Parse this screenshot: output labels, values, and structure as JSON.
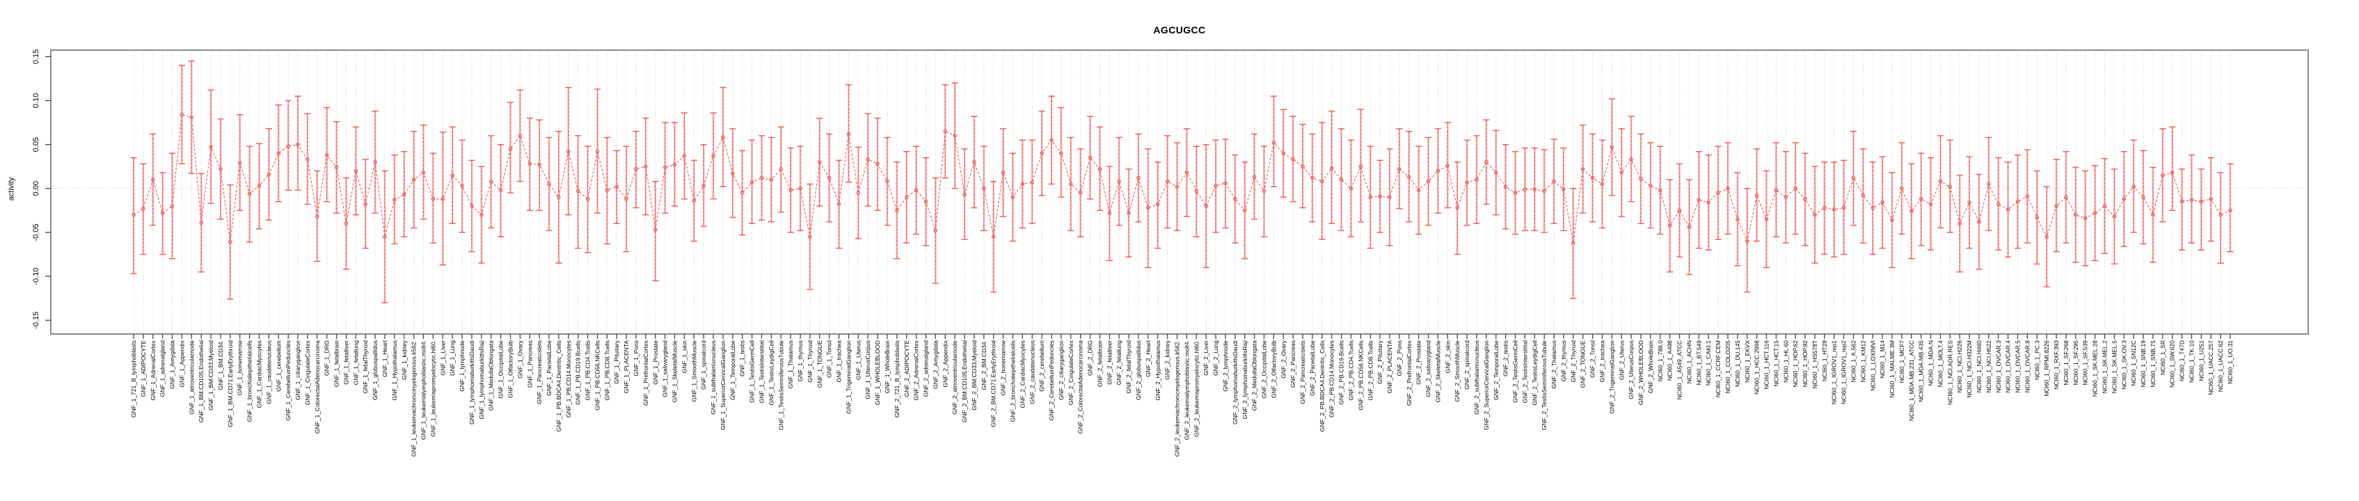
{
  "chart_data": {
    "type": "line",
    "subtype": "error-bar-series",
    "title": "AGCUGCC",
    "ylabel": "activity",
    "xlabel": "",
    "ylim": [
      -0.158,
      0.158
    ],
    "ytick_labels": [
      "-0.15",
      "-0.10",
      "-0.05",
      "0.00",
      "0.05",
      "0.10",
      "0.15"
    ],
    "grid": "vertical-dotted-per-category-plus-zero-line",
    "legend": "none",
    "colors": {
      "series_red": "#ee5a5a",
      "errorbar_pink": "#f7abab",
      "grid_gray": "#c8c8c8",
      "frame_gray": "#8a8a8a",
      "tick_dark": "#444444"
    },
    "groups": [
      {
        "prefix": "GNF_1_",
        "items": [
          "721_B_lymphoblasts",
          "ADIPOCYTE",
          "AdrenalCortex",
          "adrenalgland",
          "Amygdala",
          "Appendix",
          "atrioventricularnode",
          "BM.CD105.Endothelial",
          "BM.CD33.Myeloid",
          "BM.CD34.",
          "BM.CD71.EarlyErythroid",
          "bonemarrow",
          "bronchialepithelialcells",
          "CardiacMyocytes",
          "caudatenucleus",
          "cerebellum",
          "CerebellumPeduncles",
          "ciliaryganglion",
          "CingulateCortex",
          "ColorectalAdenocarcinoma",
          "DRG",
          "fetalbrain",
          "fetalliver",
          "fetallung",
          "fetalThyroid",
          "globuspallidus",
          "Heart",
          "Hypothalamus",
          "kidney",
          "leukemiachronicmyelogenous.k562.",
          "leukemialymphoblastic.molt4.",
          "leukemiapromyelocytic.hl60.",
          "Liver",
          "Lung",
          "lymphnode",
          "lymphomaburkittsDaudi",
          "lymphomaburkittsRaji",
          "MedullaOblongata",
          "OccipitalLobe",
          "OlfactoryBulb",
          "Ovary",
          "Pancreas",
          "Pancreaticislets",
          "ParietalLobe",
          "PB.BDCA4.Dentritic_Cells",
          "PB.CD14.Monocytes",
          "PB.CD19.Bcells",
          "PB.CD4.Tcells",
          "PB.CD56.NKCells",
          "PB.CD8.Tcells",
          "Pituitary",
          "PLACENTA",
          "Pons",
          "PrefrontalCortex",
          "Prostate",
          "salivarygland",
          "SkeletalMuscle",
          "skin",
          "SmoothMuscle",
          "spinalcord",
          "subthalamicnucleus",
          "SuperiorCervicalGanglion",
          "TemporalLobe",
          "testis",
          "TestisGermCell",
          "TestisInterstitial",
          "TestisLeydigCell",
          "TestisSeminiferousTubule",
          "Thalamus",
          "thymus",
          "Thyroid",
          "TONGUE",
          "Tonsil",
          "trachea",
          "TrigeminalGanglion",
          "Uterus",
          "UterusCorpus",
          "WHOLEBLOOD",
          "WholeBrain"
        ],
        "v": [
          -0.03,
          -0.023,
          0.01,
          -0.028,
          -0.02,
          0.084,
          0.081,
          -0.039,
          0.047,
          0.022,
          -0.061,
          0.029,
          -0.006,
          0.003,
          0.016,
          0.04,
          0.048,
          0.05,
          0.033,
          -0.032,
          0.038,
          0.024,
          -0.04,
          0.02,
          -0.018,
          0.03,
          -0.055,
          -0.013,
          -0.007,
          0.01,
          0.018,
          -0.012,
          -0.012,
          0.015,
          0.003,
          -0.02,
          -0.03,
          0.008,
          -0.002,
          0.045,
          0.06,
          0.028,
          0.027,
          0.005,
          -0.01,
          0.042,
          -0.003,
          -0.012,
          0.042,
          -0.002,
          0.002,
          -0.012,
          0.022,
          0.025,
          -0.047,
          0.024,
          0.027,
          0.037,
          -0.014,
          0.003,
          0.037,
          0.058,
          0.017,
          -0.005,
          0.007,
          0.012,
          0.01,
          0.022,
          -0.002,
          0.0,
          -0.055,
          0.03,
          0.012,
          -0.018,
          0.062,
          -0.005,
          0.033,
          0.028,
          0.008
        ],
        "lo": [
          -0.097,
          -0.075,
          -0.042,
          -0.075,
          -0.08,
          0.028,
          0.017,
          -0.095,
          -0.017,
          -0.035,
          -0.126,
          -0.025,
          -0.061,
          -0.046,
          -0.036,
          -0.015,
          -0.002,
          -0.002,
          -0.018,
          -0.083,
          -0.015,
          -0.028,
          -0.092,
          -0.03,
          -0.068,
          -0.028,
          -0.13,
          -0.063,
          -0.055,
          -0.045,
          -0.035,
          -0.062,
          -0.087,
          -0.04,
          -0.05,
          -0.072,
          -0.085,
          -0.045,
          -0.055,
          -0.005,
          0.008,
          -0.025,
          -0.025,
          -0.048,
          -0.085,
          -0.03,
          -0.068,
          -0.073,
          -0.028,
          -0.063,
          -0.04,
          -0.072,
          -0.022,
          -0.03,
          -0.105,
          -0.028,
          -0.02,
          -0.012,
          -0.06,
          -0.043,
          -0.012,
          0.002,
          -0.033,
          -0.053,
          -0.04,
          -0.036,
          -0.038,
          -0.027,
          -0.05,
          -0.048,
          -0.115,
          -0.02,
          -0.038,
          -0.068,
          0.007,
          -0.057,
          -0.02,
          -0.025,
          -0.042
        ],
        "hi": [
          0.035,
          0.028,
          0.062,
          0.018,
          0.04,
          0.14,
          0.145,
          0.017,
          0.112,
          0.079,
          0.004,
          0.084,
          0.048,
          0.051,
          0.068,
          0.095,
          0.1,
          0.105,
          0.085,
          0.02,
          0.092,
          0.076,
          0.012,
          0.07,
          0.033,
          0.088,
          0.02,
          0.038,
          0.042,
          0.065,
          0.072,
          0.04,
          0.064,
          0.07,
          0.055,
          0.032,
          0.025,
          0.06,
          0.05,
          0.098,
          0.112,
          0.08,
          0.078,
          0.058,
          0.065,
          0.115,
          0.06,
          0.048,
          0.113,
          0.058,
          0.043,
          0.048,
          0.065,
          0.08,
          0.008,
          0.075,
          0.075,
          0.086,
          0.032,
          0.05,
          0.086,
          0.115,
          0.068,
          0.043,
          0.055,
          0.06,
          0.058,
          0.07,
          0.046,
          0.048,
          0.005,
          0.08,
          0.062,
          0.032,
          0.118,
          0.047,
          0.085,
          0.08,
          0.058
        ]
      },
      {
        "prefix": "GNF_2_",
        "items": [
          "721_B_lymphoblasts",
          "ADIPOCYTE",
          "AdrenalCortex",
          "adrenalgland",
          "Amygdala",
          "Appendix",
          "atrioventricularnode",
          "BM.CD105.Endothelial",
          "BM.CD33.Myeloid",
          "BM.CD34.",
          "BM.CD71.EarlyErythroid",
          "bonemarrow",
          "bronchialepithelialcells",
          "CardiacMyocytes",
          "caudatenucleus",
          "cerebellum",
          "CerebellumPeduncles",
          "ciliaryganglion",
          "CingulateCortex",
          "ColorectalAdenocarcinoma",
          "DRG",
          "fetalbrain",
          "fetalliver",
          "fetallung",
          "fetalThyroid",
          "globuspallidus",
          "Heart",
          "Hypothalamus",
          "kidney",
          "leukemiachronicmyelogenous.k562.",
          "leukemialymphoblastic.molt4.",
          "leukemiapromyelocytic.hl60.",
          "Liver",
          "Lung",
          "lymphnode",
          "lymphomaburkittsDaudi",
          "lymphomaburkittsRaji",
          "MedullaOblongata",
          "OccipitalLobe",
          "OlfactoryBulb",
          "Ovary",
          "Pancreas",
          "Pancreaticislets",
          "ParietalLobe",
          "PB.BDCA4.Dentritic_Cells",
          "PB.CD14.Monocytes",
          "PB.CD19.Bcells",
          "PB.CD4.Tcells",
          "PB.CD56.NKCells",
          "PB.CD8.Tcells",
          "Pituitary",
          "PLACENTA",
          "Pons",
          "PrefrontalCortex",
          "Prostate",
          "salivarygland",
          "SkeletalMuscle",
          "skin",
          "SmoothMuscle",
          "spinalcord",
          "subthalamicnucleus",
          "SuperiorCervicalGanglion",
          "TemporalLobe",
          "testis",
          "TestisGermCell",
          "TestisInterstitial",
          "TestisLeydigCell",
          "TestisSeminiferousTubule",
          "Thalamus",
          "thymus",
          "Thyroid",
          "TONGUE",
          "Tonsil",
          "trachea",
          "TrigeminalGanglion",
          "Uterus",
          "UterusCorpus",
          "WHOLEBLOOD",
          "WholeBrain"
        ],
        "v": [
          -0.025,
          -0.01,
          -0.002,
          -0.015,
          -0.048,
          0.065,
          0.06,
          -0.007,
          0.03,
          0.0,
          -0.055,
          0.018,
          -0.01,
          0.005,
          0.007,
          0.04,
          0.055,
          0.04,
          0.005,
          -0.005,
          0.035,
          0.022,
          -0.028,
          0.008,
          -0.028,
          0.012,
          -0.022,
          -0.018,
          0.008,
          0.002,
          0.018,
          -0.003,
          -0.02,
          0.003,
          0.006,
          -0.012,
          -0.025,
          0.013,
          -0.003,
          0.052,
          0.04,
          0.033,
          0.025,
          0.012,
          0.008,
          0.023,
          0.01,
          0.0,
          0.025,
          -0.01,
          -0.009,
          -0.01,
          0.022,
          0.013,
          -0.002,
          0.008,
          0.02,
          0.026,
          -0.022,
          0.007,
          0.01,
          0.03,
          0.018,
          0.002,
          -0.005,
          -0.001,
          -0.001,
          -0.003,
          0.008,
          -0.001,
          -0.062,
          0.022,
          0.012,
          0.005,
          0.047,
          0.018,
          0.033,
          0.011,
          0.003
        ],
        "lo": [
          -0.08,
          -0.062,
          -0.052,
          -0.065,
          -0.108,
          0.012,
          0.0,
          -0.058,
          -0.022,
          -0.048,
          -0.118,
          -0.032,
          -0.06,
          -0.045,
          -0.04,
          -0.008,
          0.005,
          -0.01,
          -0.048,
          -0.055,
          -0.012,
          -0.025,
          -0.082,
          -0.042,
          -0.078,
          -0.038,
          -0.09,
          -0.068,
          -0.045,
          -0.048,
          -0.032,
          -0.055,
          -0.09,
          -0.05,
          -0.045,
          -0.062,
          -0.08,
          -0.035,
          -0.055,
          0.002,
          -0.01,
          -0.015,
          -0.022,
          -0.038,
          -0.058,
          -0.04,
          -0.048,
          -0.055,
          -0.038,
          -0.068,
          -0.05,
          -0.065,
          -0.023,
          -0.038,
          -0.052,
          -0.042,
          -0.028,
          -0.022,
          -0.075,
          -0.042,
          -0.04,
          -0.018,
          -0.03,
          -0.046,
          -0.052,
          -0.048,
          -0.048,
          -0.05,
          -0.04,
          -0.048,
          -0.125,
          -0.028,
          -0.038,
          -0.045,
          -0.008,
          -0.032,
          -0.015,
          -0.04,
          -0.045
        ],
        "hi": [
          0.03,
          0.042,
          0.048,
          0.035,
          0.012,
          0.118,
          0.12,
          0.045,
          0.082,
          0.048,
          0.008,
          0.068,
          0.04,
          0.055,
          0.055,
          0.088,
          0.105,
          0.092,
          0.058,
          0.045,
          0.082,
          0.07,
          0.025,
          0.058,
          0.022,
          0.062,
          0.045,
          0.03,
          0.06,
          0.052,
          0.068,
          0.048,
          0.05,
          0.055,
          0.056,
          0.038,
          0.03,
          0.062,
          0.048,
          0.105,
          0.09,
          0.082,
          0.073,
          0.062,
          0.075,
          0.088,
          0.068,
          0.055,
          0.09,
          0.048,
          0.032,
          0.045,
          0.068,
          0.065,
          0.048,
          0.058,
          0.068,
          0.075,
          0.03,
          0.055,
          0.06,
          0.078,
          0.066,
          0.05,
          0.042,
          0.046,
          0.046,
          0.044,
          0.056,
          0.046,
          0.0,
          0.072,
          0.062,
          0.055,
          0.102,
          0.068,
          0.082,
          0.062,
          0.052
        ]
      },
      {
        "prefix": "NCI60_1_",
        "items": [
          "786.0",
          "A498",
          "A549_ATCC",
          "ACHN",
          "BT.549",
          "CAKI.1",
          "CCRF.CEM",
          "COLO205",
          "DU.145",
          "EKVX",
          "HCC.2998",
          "HCT.116",
          "HCT.15",
          "HL.60",
          "HOP.62",
          "HOP.92",
          "HS578T",
          "HT29",
          "IGROV1_rep1",
          "IGROV1_rep2",
          "K.562",
          "KM12",
          "LOXIMVI",
          "M14",
          "MALME.3M",
          "MCF7",
          "MDA.MB.231_ATCC",
          "MDA.MB.435",
          "MDA.N",
          "MOLT.4",
          "NCI.ADR.RES",
          "NCI.H226",
          "NCI.H322M",
          "NCI.H460",
          "NCI.H522",
          "OVCAR.3",
          "OVCAR.4",
          "OVCAR.5",
          "OVCAR.8",
          "PC.3",
          "RPMI.8226",
          "RXF.393",
          "SF.268",
          "SF.295",
          "SF.539",
          "SK.MEL.28",
          "SK.MEL.2",
          "SK.MEL.5",
          "SK.OV.3",
          "SN12C",
          "SNB.19",
          "SNB.75",
          "SR",
          "SW.620",
          "T47D",
          "TK.10",
          "U251",
          "UACC.257",
          "UACC.62",
          "UO.31"
        ],
        "v": [
          -0.002,
          -0.042,
          -0.025,
          -0.044,
          -0.013,
          -0.016,
          -0.005,
          0.0,
          -0.035,
          -0.06,
          -0.008,
          -0.035,
          -0.002,
          -0.01,
          0.0,
          -0.012,
          -0.03,
          -0.022,
          -0.024,
          -0.022,
          0.012,
          -0.008,
          -0.022,
          -0.016,
          -0.036,
          0.0,
          -0.026,
          -0.012,
          -0.018,
          0.008,
          0.002,
          -0.04,
          -0.016,
          -0.038,
          0.005,
          -0.018,
          -0.024,
          -0.015,
          -0.009,
          -0.033,
          -0.055,
          -0.02,
          -0.01,
          -0.03,
          -0.034,
          -0.028,
          -0.02,
          -0.032,
          -0.012,
          0.002,
          -0.01,
          -0.03,
          0.015,
          0.018,
          -0.015,
          -0.013,
          -0.015,
          -0.012,
          -0.03,
          -0.025
        ],
        "lo": [
          -0.052,
          -0.095,
          -0.078,
          -0.098,
          -0.068,
          -0.07,
          -0.058,
          -0.052,
          -0.088,
          -0.118,
          -0.06,
          -0.09,
          -0.055,
          -0.062,
          -0.052,
          -0.065,
          -0.085,
          -0.075,
          -0.078,
          -0.075,
          -0.042,
          -0.062,
          -0.075,
          -0.068,
          -0.09,
          -0.052,
          -0.08,
          -0.065,
          -0.07,
          -0.045,
          -0.05,
          -0.095,
          -0.068,
          -0.092,
          -0.048,
          -0.07,
          -0.078,
          -0.068,
          -0.062,
          -0.086,
          -0.112,
          -0.072,
          -0.062,
          -0.084,
          -0.088,
          -0.082,
          -0.074,
          -0.086,
          -0.066,
          -0.05,
          -0.063,
          -0.084,
          -0.038,
          -0.025,
          -0.07,
          -0.062,
          -0.07,
          -0.06,
          -0.085,
          -0.072
        ],
        "hi": [
          0.048,
          0.01,
          0.028,
          0.01,
          0.042,
          0.038,
          0.048,
          0.052,
          0.018,
          0.0,
          0.045,
          0.02,
          0.052,
          0.042,
          0.052,
          0.04,
          0.025,
          0.03,
          0.03,
          0.032,
          0.065,
          0.045,
          0.03,
          0.036,
          0.018,
          0.052,
          0.028,
          0.04,
          0.035,
          0.06,
          0.055,
          0.015,
          0.036,
          0.016,
          0.058,
          0.035,
          0.03,
          0.038,
          0.044,
          0.02,
          0.002,
          0.033,
          0.042,
          0.024,
          0.02,
          0.026,
          0.034,
          0.022,
          0.042,
          0.055,
          0.043,
          0.024,
          0.068,
          0.07,
          0.022,
          0.038,
          0.022,
          0.035,
          0.018,
          0.028
        ]
      }
    ]
  }
}
